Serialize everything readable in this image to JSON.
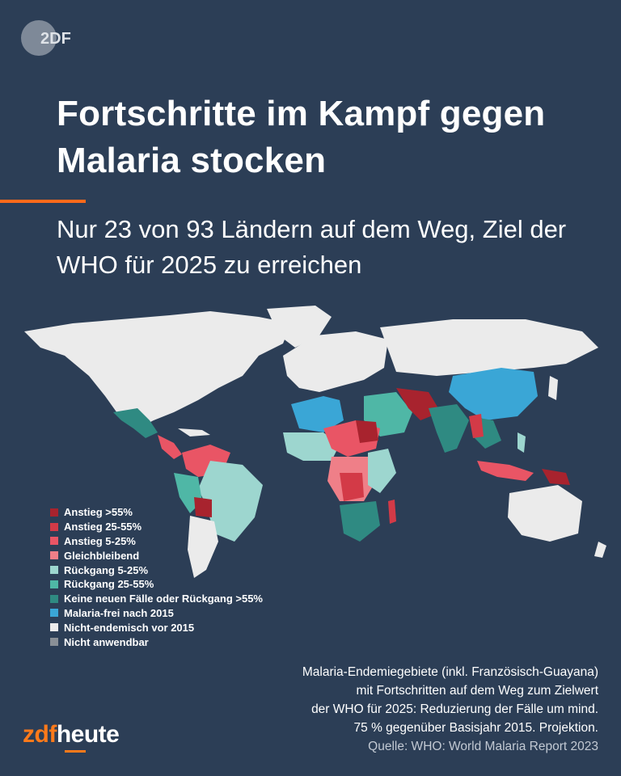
{
  "badge": {
    "text": "2DF"
  },
  "title": "Fortschritte im Kampf gegen Malaria stocken",
  "subtitle": "Nur 23 von 93 Ländern auf dem Weg, Ziel der WHO für 2025 zu erreichen",
  "legend": [
    {
      "label": "Anstieg >55%",
      "color": "#a8232e"
    },
    {
      "label": "Anstieg 25-55%",
      "color": "#d33a47"
    },
    {
      "label": "Anstieg 5-25%",
      "color": "#e95565"
    },
    {
      "label": "Gleichbleibend",
      "color": "#ef7f88"
    },
    {
      "label": "Rückgang 5-25%",
      "color": "#9dd6cf"
    },
    {
      "label": "Rückgang 25-55%",
      "color": "#4fb7a6"
    },
    {
      "label": "Keine neuen Fälle oder Rückgang >55%",
      "color": "#2f8a82"
    },
    {
      "label": "Malaria-frei nach 2015",
      "color": "#3aa6d6"
    },
    {
      "label": "Nicht-endemisch vor 2015",
      "color": "#ebebeb"
    },
    {
      "label": "Nicht anwendbar",
      "color": "#8a8f96"
    }
  ],
  "note": {
    "line1": "Malaria-Endemiegebiete (inkl. Französisch-Guayana)",
    "line2": "mit Fortschritten auf dem Weg zum Zielwert",
    "line3": "der WHO für 2025: Reduzierung der Fälle um mind.",
    "line4": "75 % gegenüber Basisjahr 2015. Projektion.",
    "source": "Quelle: WHO: World Malaria Report 2023"
  },
  "logo": {
    "part1": "zdf",
    "part2": "heute"
  }
}
